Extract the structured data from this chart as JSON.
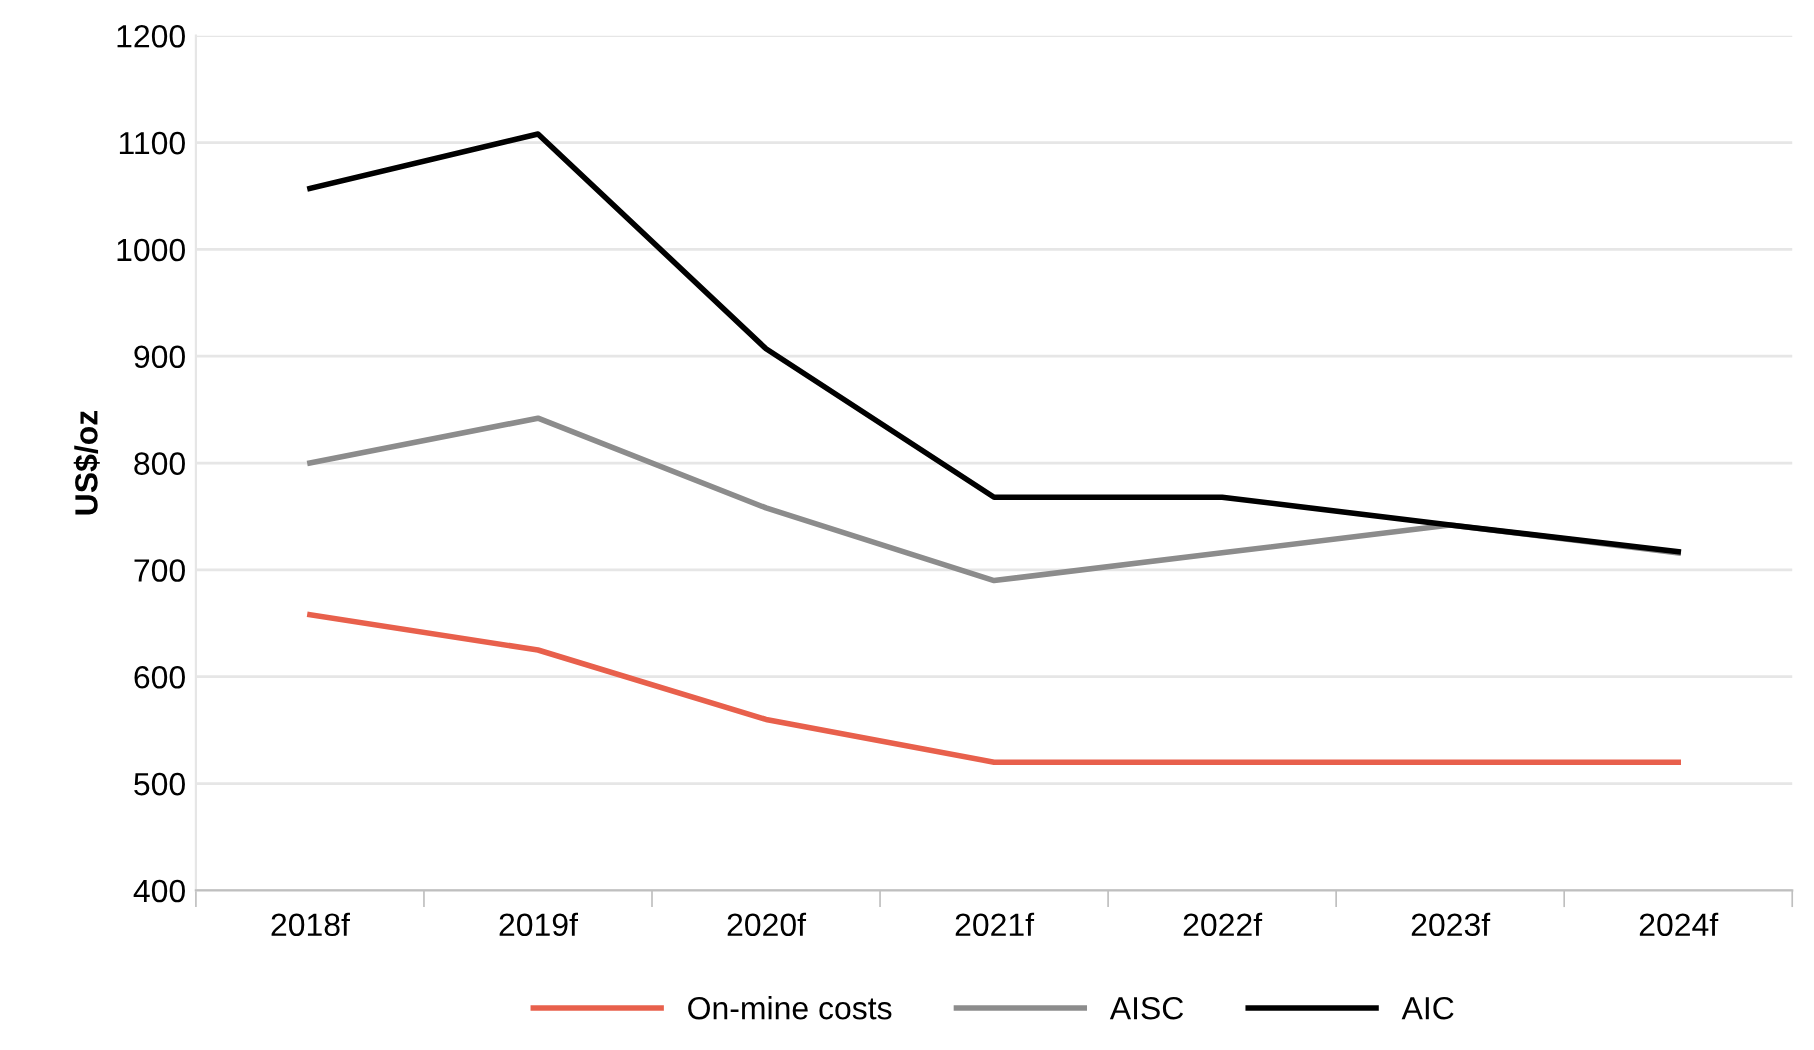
{
  "chart_data": {
    "type": "line",
    "ylabel": "US$/oz",
    "categories": [
      "2018f",
      "2019f",
      "2020f",
      "2021f",
      "2022f",
      "2023f",
      "2024f"
    ],
    "series": [
      {
        "name": "On-mine costs",
        "color": "#e8604c",
        "values": [
          658,
          625,
          560,
          520,
          520,
          520,
          520
        ]
      },
      {
        "name": "AISC",
        "color": "#8c8c8c",
        "values": [
          800,
          842,
          758,
          690,
          716,
          742,
          716
        ]
      },
      {
        "name": "AIC",
        "color": "#000000",
        "values": [
          1057,
          1108,
          907,
          768,
          768,
          742,
          717
        ]
      }
    ],
    "ylim": [
      400,
      1200
    ],
    "yticks": [
      400,
      500,
      600,
      700,
      800,
      900,
      1000,
      1100,
      1200
    ],
    "grid": "y",
    "legend": "bottom",
    "marker": "none",
    "line_style": "solid"
  }
}
